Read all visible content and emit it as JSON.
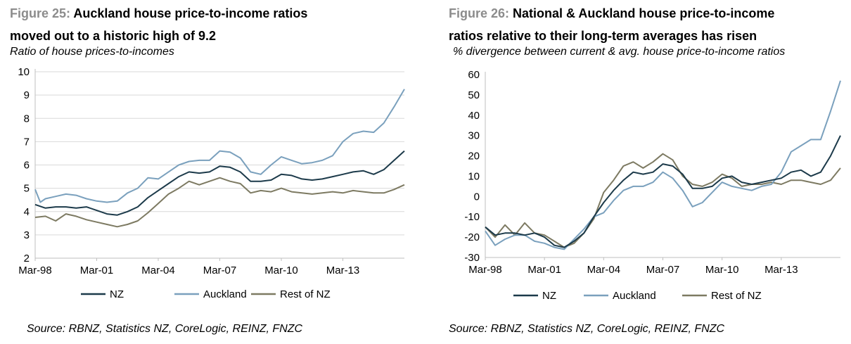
{
  "colors": {
    "nz": "#1c3a4a",
    "auckland": "#7aa0bd",
    "rest": "#7d7a62",
    "grid": "#d9d9d9",
    "figure_label": "#8c8c8c"
  },
  "source": "Source: RBNZ, Statistics NZ, CoreLogic, REINZ, FNZC",
  "chart_data": [
    {
      "type": "line",
      "figure_label": "Figure 25:",
      "title_line1": "Auckland house price-to-income ratios",
      "title_line2": "moved out to a historic high of 9.2",
      "subtitle": "Ratio of house prices-to-incomes",
      "xlabel": "",
      "ylabel": "",
      "x_start": 1998.0,
      "x_end": 2016.0,
      "x_ticks": [
        1998,
        2001,
        2004,
        2007,
        2010,
        2013
      ],
      "x_tick_labels": [
        "Mar-98",
        "Mar-01",
        "Mar-04",
        "Mar-07",
        "Mar-10",
        "Mar-13"
      ],
      "ylim": [
        2,
        10
      ],
      "y_ticks": [
        2,
        3,
        4,
        5,
        6,
        7,
        8,
        9,
        10
      ],
      "y_tick_labels": [
        "2",
        "3",
        "4",
        "5",
        "6",
        "7",
        "8",
        "9",
        "10"
      ],
      "grid": true,
      "legend_position": "bottom-center",
      "series": [
        {
          "name": "NZ",
          "key": "nz",
          "x": [
            1998.0,
            1998.5,
            1999.0,
            1999.5,
            2000.0,
            2000.5,
            2001.0,
            2001.5,
            2002.0,
            2002.5,
            2003.0,
            2003.5,
            2004.0,
            2004.5,
            2005.0,
            2005.5,
            2006.0,
            2006.5,
            2007.0,
            2007.5,
            2008.0,
            2008.5,
            2009.0,
            2009.5,
            2010.0,
            2010.5,
            2011.0,
            2011.5,
            2012.0,
            2012.5,
            2013.0,
            2013.5,
            2014.0,
            2014.5,
            2015.0,
            2015.5,
            2016.0
          ],
          "values": [
            4.3,
            4.15,
            4.2,
            4.2,
            4.15,
            4.2,
            4.05,
            3.9,
            3.85,
            4.0,
            4.2,
            4.6,
            4.9,
            5.2,
            5.5,
            5.7,
            5.65,
            5.7,
            5.95,
            5.9,
            5.7,
            5.3,
            5.3,
            5.35,
            5.6,
            5.55,
            5.4,
            5.35,
            5.4,
            5.5,
            5.6,
            5.7,
            5.75,
            5.6,
            5.8,
            6.2,
            6.6
          ]
        },
        {
          "name": "Auckland",
          "key": "auckland",
          "x": [
            1998.0,
            1998.25,
            1998.5,
            1999.0,
            1999.5,
            2000.0,
            2000.5,
            2001.0,
            2001.5,
            2002.0,
            2002.5,
            2003.0,
            2003.5,
            2004.0,
            2004.5,
            2005.0,
            2005.5,
            2006.0,
            2006.5,
            2007.0,
            2007.5,
            2008.0,
            2008.5,
            2009.0,
            2009.5,
            2010.0,
            2010.5,
            2011.0,
            2011.5,
            2012.0,
            2012.5,
            2013.0,
            2013.5,
            2014.0,
            2014.5,
            2015.0,
            2015.5,
            2016.0
          ],
          "values": [
            4.95,
            4.4,
            4.55,
            4.65,
            4.75,
            4.7,
            4.55,
            4.45,
            4.4,
            4.45,
            4.8,
            5.0,
            5.45,
            5.4,
            5.7,
            6.0,
            6.15,
            6.2,
            6.2,
            6.6,
            6.55,
            6.3,
            5.7,
            5.6,
            6.0,
            6.35,
            6.2,
            6.05,
            6.1,
            6.2,
            6.4,
            7.0,
            7.35,
            7.45,
            7.4,
            7.8,
            8.5,
            9.25
          ]
        },
        {
          "name": "Rest of NZ",
          "key": "rest",
          "x": [
            1998.0,
            1998.5,
            1999.0,
            1999.5,
            2000.0,
            2000.5,
            2001.0,
            2001.5,
            2002.0,
            2002.5,
            2003.0,
            2003.5,
            2004.0,
            2004.5,
            2005.0,
            2005.5,
            2006.0,
            2006.5,
            2007.0,
            2007.5,
            2008.0,
            2008.5,
            2009.0,
            2009.5,
            2010.0,
            2010.5,
            2011.0,
            2011.5,
            2012.0,
            2012.5,
            2013.0,
            2013.5,
            2014.0,
            2014.5,
            2015.0,
            2015.5,
            2016.0
          ],
          "values": [
            3.75,
            3.8,
            3.6,
            3.9,
            3.8,
            3.65,
            3.55,
            3.45,
            3.35,
            3.45,
            3.6,
            3.95,
            4.35,
            4.75,
            5.0,
            5.3,
            5.15,
            5.3,
            5.45,
            5.3,
            5.2,
            4.8,
            4.9,
            4.85,
            5.0,
            4.85,
            4.8,
            4.75,
            4.8,
            4.85,
            4.8,
            4.9,
            4.85,
            4.8,
            4.8,
            4.95,
            5.15
          ]
        }
      ]
    },
    {
      "type": "line",
      "figure_label": "Figure 26:",
      "title_line1": "National & Auckland house price-to-income",
      "title_line2": "ratios relative to their long-term averages has risen",
      "subtitle": "% divergence between current & avg. house price-to-income ratios",
      "xlabel": "",
      "ylabel": "",
      "x_start": 1998.0,
      "x_end": 2016.0,
      "x_ticks": [
        1998,
        2001,
        2004,
        2007,
        2010,
        2013
      ],
      "x_tick_labels": [
        "Mar-98",
        "Mar-01",
        "Mar-04",
        "Mar-07",
        "Mar-10",
        "Mar-13"
      ],
      "ylim": [
        -30,
        60
      ],
      "y_ticks": [
        -30,
        -20,
        -10,
        0,
        10,
        20,
        30,
        40,
        50,
        60
      ],
      "y_tick_labels": [
        "-30",
        "-20",
        "-10",
        "0",
        "10",
        "20",
        "30",
        "40",
        "50",
        "60"
      ],
      "grid": false,
      "legend_position": "bottom-center",
      "series": [
        {
          "name": "NZ",
          "key": "nz",
          "x": [
            1998.0,
            1998.5,
            1999.0,
            1999.5,
            2000.0,
            2000.5,
            2001.0,
            2001.5,
            2002.0,
            2002.5,
            2003.0,
            2003.5,
            2004.0,
            2004.5,
            2005.0,
            2005.5,
            2006.0,
            2006.5,
            2007.0,
            2007.5,
            2008.0,
            2008.5,
            2009.0,
            2009.5,
            2010.0,
            2010.5,
            2011.0,
            2011.5,
            2012.0,
            2012.5,
            2013.0,
            2013.5,
            2014.0,
            2014.5,
            2015.0,
            2015.5,
            2016.0
          ],
          "values": [
            -15,
            -19,
            -18,
            -18,
            -19,
            -18,
            -20,
            -24,
            -25,
            -22,
            -18,
            -10,
            -3,
            3,
            8,
            12,
            11,
            12,
            16,
            15,
            11,
            4,
            4,
            5,
            9,
            10,
            7,
            6,
            7,
            8,
            9,
            12,
            13,
            10,
            12,
            20,
            30
          ]
        },
        {
          "name": "Auckland",
          "key": "auckland",
          "x": [
            1998.0,
            1998.5,
            1999.0,
            1999.5,
            2000.0,
            2000.5,
            2001.0,
            2001.5,
            2002.0,
            2002.5,
            2003.0,
            2003.5,
            2004.0,
            2004.5,
            2005.0,
            2005.5,
            2006.0,
            2006.5,
            2007.0,
            2007.5,
            2008.0,
            2008.5,
            2009.0,
            2009.5,
            2010.0,
            2010.5,
            2011.0,
            2011.5,
            2012.0,
            2012.5,
            2013.0,
            2013.5,
            2014.0,
            2014.5,
            2015.0,
            2015.5,
            2016.0
          ],
          "values": [
            -17,
            -24,
            -21,
            -19,
            -19,
            -22,
            -23,
            -25,
            -26,
            -21,
            -16,
            -10,
            -8,
            -2,
            3,
            5,
            5,
            7,
            12,
            9,
            3,
            -5,
            -3,
            2,
            7,
            5,
            4,
            3,
            5,
            6,
            12,
            22,
            25,
            28,
            28,
            42,
            57
          ]
        },
        {
          "name": "Rest of NZ",
          "key": "rest",
          "x": [
            1998.0,
            1998.5,
            1999.0,
            1999.5,
            2000.0,
            2000.5,
            2001.0,
            2001.5,
            2002.0,
            2002.5,
            2003.0,
            2003.5,
            2004.0,
            2004.5,
            2005.0,
            2005.5,
            2006.0,
            2006.5,
            2007.0,
            2007.5,
            2008.0,
            2008.5,
            2009.0,
            2009.5,
            2010.0,
            2010.5,
            2011.0,
            2011.5,
            2012.0,
            2012.5,
            2013.0,
            2013.5,
            2014.0,
            2014.5,
            2015.0,
            2015.5,
            2016.0
          ],
          "values": [
            -15,
            -20,
            -14,
            -19,
            -13,
            -18,
            -19,
            -22,
            -25,
            -23,
            -18,
            -11,
            2,
            8,
            15,
            17,
            14,
            17,
            21,
            18,
            10,
            6,
            5,
            7,
            11,
            9,
            5,
            6,
            6,
            7,
            6,
            8,
            8,
            7,
            6,
            8,
            14
          ]
        }
      ]
    }
  ]
}
